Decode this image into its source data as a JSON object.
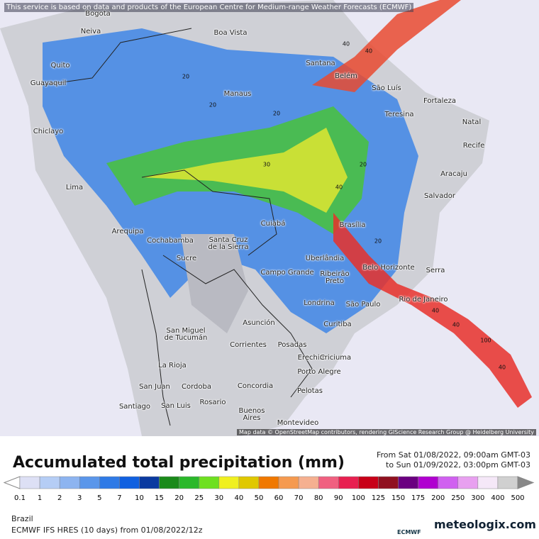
{
  "banner": "This service is based on data and products of the European Centre for Medium-range Weather Forecasts (ECMWF)",
  "attribution": "Map data © OpenStreetMap contributors, rendering GIScience Research Group @ Heidelberg University",
  "cities": [
    "Bogota",
    "Neiva",
    "Boa Vista",
    "Quito",
    "Guayaquil",
    "Santana",
    "Belém",
    "São Luís",
    "Manaus",
    "Fortaleza",
    "Teresina",
    "Chiclayo",
    "Natal",
    "Recife",
    "Aracaju",
    "Lima",
    "Salvador",
    "Cuiabá",
    "Brasília",
    "Arequipa",
    "Cochabamba",
    "Santa Cruz\nde la Sierra",
    "Sucre",
    "Uberlândia",
    "Belo Horizonte",
    "Serra",
    "Campo Grande",
    "Ribeirão\nPreto",
    "Londrina",
    "São Paulo",
    "Rio de Janeiro",
    "Asunción",
    "San Miguel\nde Tucumán",
    "Curitiba",
    "Corrientes",
    "Posadas",
    "Erechim",
    "Criciuma",
    "La Rioja",
    "Porto Alegre",
    "San Juan",
    "Cordoba",
    "Concordia",
    "Pelotas",
    "Rosario",
    "Santiago",
    "San Luis",
    "Buenos\nAires",
    "Montevideo"
  ],
  "contour_labels": [
    "40",
    "40",
    "20",
    "20",
    "20",
    "30",
    "20",
    "40",
    "20",
    "40",
    "40",
    "100",
    "40"
  ],
  "title": "Accumulated total precipitation (mm)",
  "period": [
    "From Sat 01/08/2022, 09:00am GMT-03",
    "to Sun 01/09/2022, 03:00pm GMT-03"
  ],
  "legend": {
    "ticks": [
      "0.1",
      "1",
      "2",
      "3",
      "5",
      "7",
      "10",
      "15",
      "20",
      "25",
      "30",
      "40",
      "50",
      "60",
      "70",
      "80",
      "90",
      "100",
      "125",
      "150",
      "175",
      "200",
      "250",
      "300",
      "400",
      "500"
    ],
    "colors": [
      "#dde0f5",
      "#b5cdf5",
      "#8db4f0",
      "#5a96ea",
      "#2f7ae6",
      "#1060e0",
      "#0a3aa0",
      "#1a8a1a",
      "#2ab82a",
      "#6ee020",
      "#f0f020",
      "#e0c800",
      "#f07800",
      "#f59a50",
      "#f5b090",
      "#f06080",
      "#e82050",
      "#c80018",
      "#901020",
      "#6a0080",
      "#b000d0",
      "#d060f0",
      "#e8a0f0",
      "#f5e8f8",
      "#d0d0d0"
    ]
  },
  "region": "Brazil",
  "model": "ECMWF IFS HRES (10 days) from 01/08/2022/12z",
  "logo": "ECMWF",
  "brand": "meteologix.com"
}
